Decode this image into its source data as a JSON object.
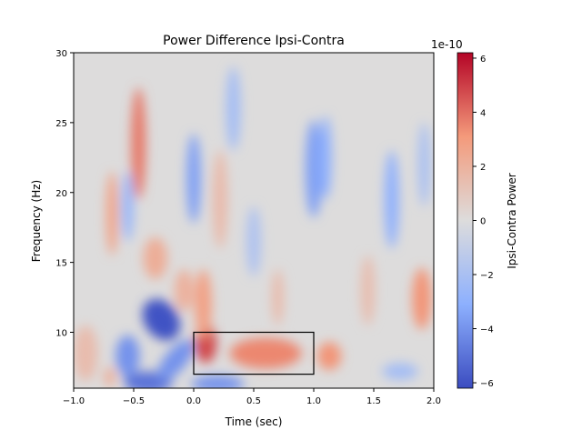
{
  "chart_data": {
    "type": "heatmap",
    "title": "Power Difference Ipsi-Contra",
    "xlabel": "Time (sec)",
    "ylabel": "Frequency (Hz)",
    "xlim": [
      -1.0,
      2.0
    ],
    "ylim": [
      6,
      30
    ],
    "xticks": [
      "−1.0",
      "−0.5",
      "0.0",
      "0.5",
      "1.0",
      "1.5",
      "2.0"
    ],
    "xtick_values": [
      -1.0,
      -0.5,
      0.0,
      0.5,
      1.0,
      1.5,
      2.0
    ],
    "yticks": [
      "10",
      "15",
      "20",
      "25",
      "30"
    ],
    "ytick_values": [
      10,
      15,
      20,
      25,
      30
    ],
    "colormap": "coolwarm",
    "colorbar": {
      "label": "Ipsi-Contra Power",
      "offset_text": "1e-10",
      "range": [
        -6.2,
        6.2
      ],
      "ticks": [
        "−6",
        "−4",
        "−2",
        "0",
        "2",
        "4",
        "6"
      ],
      "tick_values": [
        -6,
        -4,
        -2,
        0,
        2,
        4,
        6
      ]
    },
    "roi_rectangle": {
      "time": [
        0.0,
        1.0
      ],
      "freq": [
        7,
        10
      ]
    },
    "approximate_field": [
      {
        "t": -0.27,
        "f": 10.9,
        "dt": 0.14,
        "df": 1.6,
        "rot": -35,
        "v": -6.0
      },
      {
        "t": -0.55,
        "f": 8.3,
        "dt": 0.1,
        "df": 1.5,
        "rot": 0,
        "v": -4.0
      },
      {
        "t": -0.38,
        "f": 6.4,
        "dt": 0.2,
        "df": 0.8,
        "rot": 0,
        "v": -5.0
      },
      {
        "t": -0.15,
        "f": 8.0,
        "dt": 0.09,
        "df": 1.8,
        "rot": 40,
        "v": -4.0
      },
      {
        "t": 0.2,
        "f": 6.3,
        "dt": 0.22,
        "df": 0.6,
        "rot": 0,
        "v": -4.0
      },
      {
        "t": 0.1,
        "f": 9.2,
        "dt": 0.09,
        "df": 1.4,
        "rot": 0,
        "v": 4.8
      },
      {
        "t": 0.08,
        "f": 12.0,
        "dt": 0.07,
        "df": 2.5,
        "rot": 0,
        "v": 2.8
      },
      {
        "t": -0.08,
        "f": 13.0,
        "dt": 0.08,
        "df": 1.5,
        "rot": 0,
        "v": 2.0
      },
      {
        "t": 0.6,
        "f": 8.5,
        "dt": 0.3,
        "df": 1.1,
        "rot": 0,
        "v": 3.5
      },
      {
        "t": 1.13,
        "f": 8.3,
        "dt": 0.1,
        "df": 1.0,
        "rot": 0,
        "v": 3.2
      },
      {
        "t": 1.9,
        "f": 12.4,
        "dt": 0.08,
        "df": 2.2,
        "rot": 0,
        "v": 3.2
      },
      {
        "t": -0.46,
        "f": 23.5,
        "dt": 0.06,
        "df": 4.0,
        "rot": 0,
        "v": 3.8
      },
      {
        "t": -0.68,
        "f": 18.5,
        "dt": 0.05,
        "df": 3.0,
        "rot": 0,
        "v": 2.6
      },
      {
        "t": -0.32,
        "f": 15.3,
        "dt": 0.1,
        "df": 1.5,
        "rot": 0,
        "v": 2.2
      },
      {
        "t": 0.22,
        "f": 19.5,
        "dt": 0.06,
        "df": 3.5,
        "rot": 0,
        "v": 1.6
      },
      {
        "t": -0.55,
        "f": 19.0,
        "dt": 0.05,
        "df": 2.5,
        "rot": 0,
        "v": -2.6
      },
      {
        "t": 0.0,
        "f": 21.0,
        "dt": 0.06,
        "df": 3.2,
        "rot": 0,
        "v": -3.6
      },
      {
        "t": 0.33,
        "f": 26.0,
        "dt": 0.06,
        "df": 3.0,
        "rot": 0,
        "v": -2.2
      },
      {
        "t": 0.5,
        "f": 16.5,
        "dt": 0.06,
        "df": 2.5,
        "rot": 0,
        "v": -1.8
      },
      {
        "t": 1.0,
        "f": 21.7,
        "dt": 0.07,
        "df": 3.5,
        "rot": 0,
        "v": -3.6
      },
      {
        "t": 1.1,
        "f": 22.5,
        "dt": 0.05,
        "df": 3.0,
        "rot": 0,
        "v": -3.0
      },
      {
        "t": 1.65,
        "f": 19.5,
        "dt": 0.06,
        "df": 3.5,
        "rot": 0,
        "v": -3.0
      },
      {
        "t": 1.92,
        "f": 22.0,
        "dt": 0.05,
        "df": 3.0,
        "rot": 0,
        "v": -2.0
      },
      {
        "t": 1.72,
        "f": 7.2,
        "dt": 0.15,
        "df": 0.6,
        "rot": 0,
        "v": -2.2
      },
      {
        "t": 0.7,
        "f": 12.5,
        "dt": 0.05,
        "df": 2.0,
        "rot": 0,
        "v": 1.5
      },
      {
        "t": 1.45,
        "f": 13.0,
        "dt": 0.06,
        "df": 2.5,
        "rot": 0,
        "v": 1.4
      },
      {
        "t": -0.9,
        "f": 8.5,
        "dt": 0.1,
        "df": 2.0,
        "rot": 0,
        "v": 1.5
      },
      {
        "t": -0.7,
        "f": 6.8,
        "dt": 0.05,
        "df": 0.7,
        "rot": 0,
        "v": 2.0
      }
    ]
  }
}
